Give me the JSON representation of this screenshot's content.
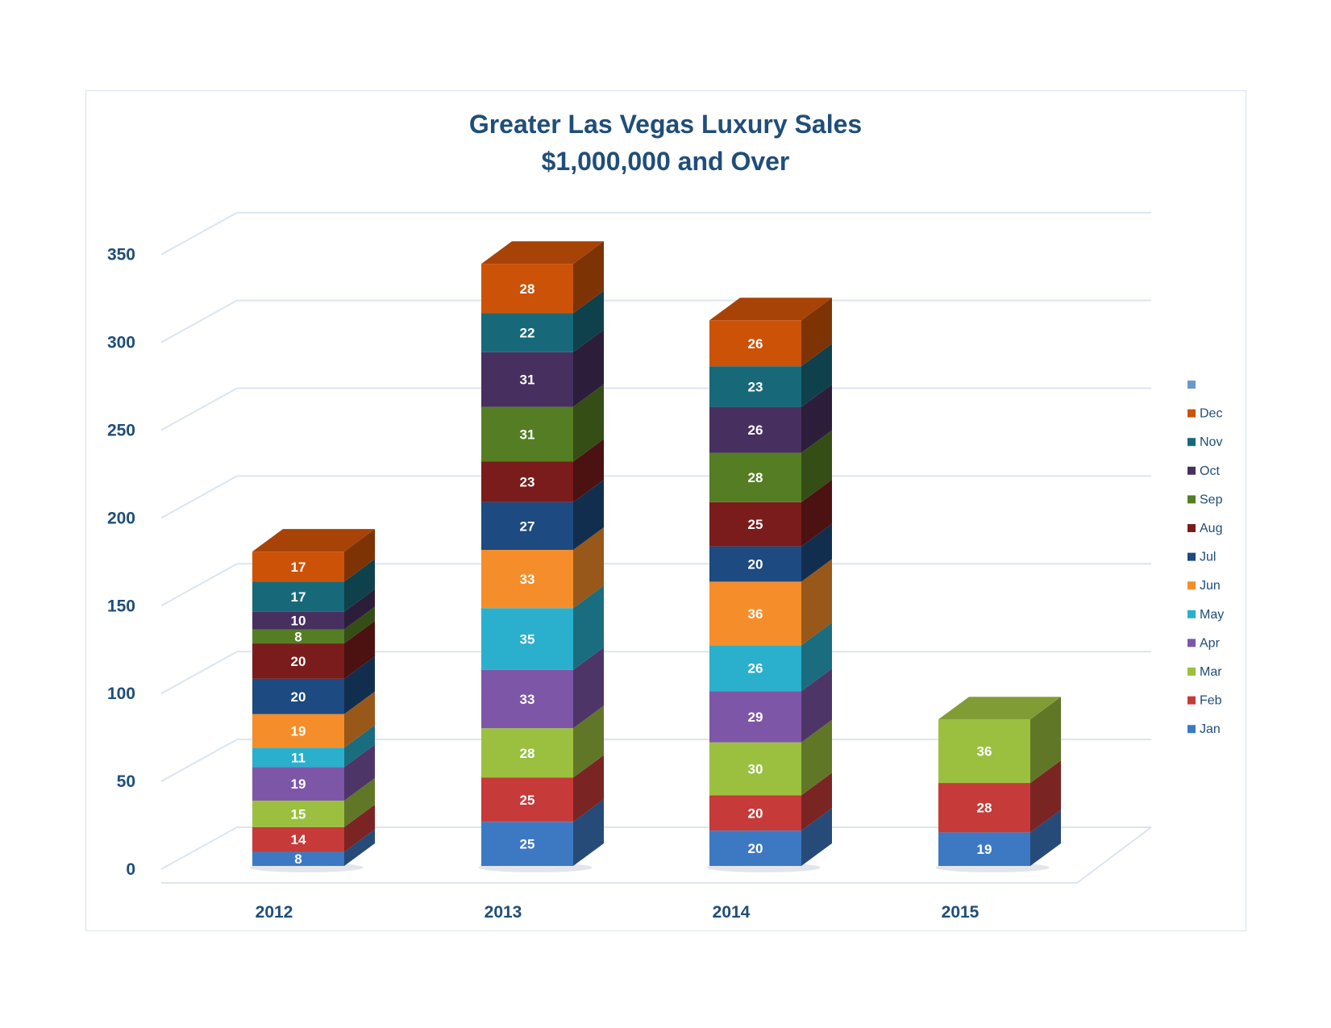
{
  "chart_data": {
    "type": "bar",
    "stacked": true,
    "three_d": true,
    "title": "Greater Las Vegas Luxury Sales",
    "subtitle": "$1,000,000 and Over",
    "categories": [
      "2012",
      "2013",
      "2014",
      "2015"
    ],
    "ylim": [
      0,
      350
    ],
    "yticks": [
      "0",
      "50",
      "100",
      "150",
      "200",
      "250",
      "300",
      "350"
    ],
    "grid": true,
    "legend": "right",
    "legend_extra_entry": {
      "name": "",
      "color": "#6c98c8"
    },
    "series": [
      {
        "name": "Jan",
        "color": "#3d79c2",
        "values": [
          8,
          25,
          20,
          19
        ]
      },
      {
        "name": "Feb",
        "color": "#c63a3a",
        "values": [
          14,
          25,
          20,
          28
        ]
      },
      {
        "name": "Mar",
        "color": "#9bc040",
        "values": [
          15,
          28,
          30,
          36
        ]
      },
      {
        "name": "Apr",
        "color": "#7e56a8",
        "values": [
          19,
          33,
          29,
          null
        ]
      },
      {
        "name": "May",
        "color": "#2ab0cc",
        "values": [
          11,
          35,
          26,
          null
        ]
      },
      {
        "name": "Jun",
        "color": "#f58e2a",
        "values": [
          19,
          33,
          36,
          null
        ]
      },
      {
        "name": "Jul",
        "color": "#1d4a80",
        "values": [
          20,
          27,
          20,
          null
        ]
      },
      {
        "name": "Aug",
        "color": "#7a1c1c",
        "values": [
          20,
          23,
          25,
          null
        ]
      },
      {
        "name": "Sep",
        "color": "#557e24",
        "values": [
          8,
          31,
          28,
          null
        ]
      },
      {
        "name": "Oct",
        "color": "#47305f",
        "values": [
          10,
          31,
          26,
          null
        ]
      },
      {
        "name": "Nov",
        "color": "#17697a",
        "values": [
          17,
          22,
          23,
          null
        ]
      },
      {
        "name": "Dec",
        "color": "#cc5208",
        "values": [
          17,
          28,
          26,
          null
        ]
      }
    ]
  }
}
